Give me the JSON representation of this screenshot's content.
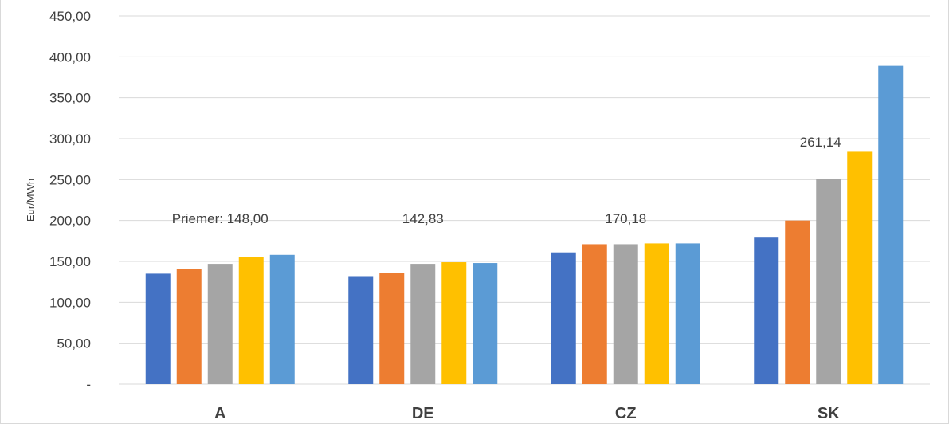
{
  "chart_data": {
    "type": "bar",
    "ylabel": "Eur/MWh",
    "ylim": [
      0,
      450
    ],
    "yticks": [
      0,
      50,
      100,
      150,
      200,
      250,
      300,
      350,
      400,
      450
    ],
    "ytick_labels": [
      "-",
      "50,00",
      "100,00",
      "150,00",
      "200,00",
      "250,00",
      "300,00",
      "350,00",
      "400,00",
      "450,00"
    ],
    "grid": true,
    "categories": [
      "A",
      "DE",
      "CZ",
      "SK"
    ],
    "series": [
      {
        "color": "#4472C4",
        "values": [
          135,
          132,
          161,
          180
        ]
      },
      {
        "color": "#ED7D31",
        "values": [
          141,
          136,
          171,
          200
        ]
      },
      {
        "color": "#A5A5A5",
        "values": [
          147,
          147,
          171,
          251
        ]
      },
      {
        "color": "#FFC000",
        "values": [
          155,
          149,
          172,
          284
        ]
      },
      {
        "color": "#5B9BD5",
        "values": [
          158,
          148,
          172,
          389
        ]
      }
    ],
    "annotations": [
      {
        "category": "A",
        "text": "Priemer:  148,00",
        "value": 148.0
      },
      {
        "category": "DE",
        "text": "142,83",
        "value": 142.83
      },
      {
        "category": "CZ",
        "text": "170,18",
        "value": 170.18
      },
      {
        "category": "SK",
        "text": "261,14",
        "value": 261.14
      }
    ]
  }
}
